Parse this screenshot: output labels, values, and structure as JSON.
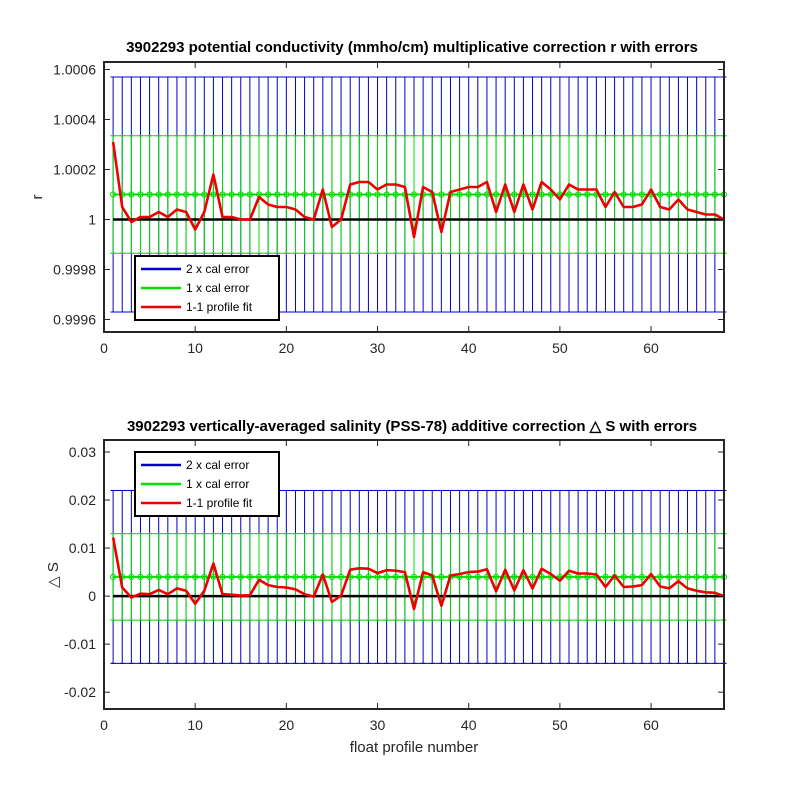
{
  "chart_data": [
    {
      "type": "line",
      "title": "3902293 potential conductivity (mmho/cm) multiplicative correction r with errors",
      "xlabel": "",
      "ylabel": "r",
      "xlim": [
        0,
        68
      ],
      "ylim": [
        0.99955,
        1.00063
      ],
      "xticks": [
        0,
        10,
        20,
        30,
        40,
        50,
        60
      ],
      "xtick_labels": [
        "0",
        "10",
        "20",
        "30",
        "40",
        "50",
        "60"
      ],
      "yticks": [
        0.9996,
        0.9998,
        1,
        1.0002,
        1.0004,
        1.0006
      ],
      "ytick_labels": [
        "0.9996",
        "0.9998",
        "1",
        "1.0002",
        "1.0004",
        "1.0006"
      ],
      "reference_line": 1,
      "legend": {
        "location": "lower-left",
        "entries": [
          "2 x cal error",
          "1 x cal error",
          "1-1 profile fit"
        ]
      },
      "series": [
        {
          "name": "2 x cal error",
          "color": "#0000cc",
          "kind": "errorbar",
          "center": 1.0001,
          "half_width": 0.00047
        },
        {
          "name": "1 x cal error",
          "color": "#00e000",
          "kind": "errorbar",
          "center": 1.0001,
          "half_width": 0.000235
        },
        {
          "name": "1-1 profile fit",
          "color": "#ee0000",
          "kind": "line",
          "x": [
            1,
            2,
            3,
            4,
            5,
            6,
            7,
            8,
            9,
            10,
            11,
            12,
            13,
            14,
            15,
            16,
            17,
            18,
            19,
            20,
            21,
            22,
            23,
            24,
            25,
            26,
            27,
            28,
            29,
            30,
            31,
            32,
            33,
            34,
            35,
            36,
            37,
            38,
            39,
            40,
            41,
            42,
            43,
            44,
            45,
            46,
            47,
            48,
            49,
            50,
            51,
            52,
            53,
            54,
            55,
            56,
            57,
            58,
            59,
            60,
            61,
            62,
            63,
            64,
            65,
            66,
            67,
            68
          ],
          "values": [
            1.00031,
            1.00005,
            0.99999,
            1.00001,
            1.00001,
            1.00003,
            1.00001,
            1.00004,
            1.00003,
            0.99996,
            1.00003,
            1.00018,
            1.00001,
            1.00001,
            1.0,
            1.0,
            1.00009,
            1.00006,
            1.00005,
            1.00005,
            1.00004,
            1.00001,
            1.0,
            1.00012,
            0.99997,
            1.0,
            1.00014,
            1.00015,
            1.00015,
            1.00012,
            1.00014,
            1.00014,
            1.00013,
            0.99993,
            1.00013,
            1.00011,
            0.99995,
            1.00011,
            1.00012,
            1.00013,
            1.00013,
            1.00015,
            1.00003,
            1.00014,
            1.00003,
            1.00014,
            1.00004,
            1.00015,
            1.00012,
            1.00008,
            1.00014,
            1.00012,
            1.00012,
            1.00012,
            1.00005,
            1.00011,
            1.00005,
            1.00005,
            1.00006,
            1.00012,
            1.00005,
            1.00004,
            1.00008,
            1.00004,
            1.00003,
            1.00002,
            1.00002,
            1.0
          ]
        }
      ]
    },
    {
      "type": "line",
      "title": "3902293 vertically-averaged salinity (PSS-78) additive correction △ S with errors",
      "xlabel": "float profile number",
      "ylabel": "△ S",
      "xlim": [
        0,
        68
      ],
      "ylim": [
        -0.0235,
        0.0325
      ],
      "xticks": [
        0,
        10,
        20,
        30,
        40,
        50,
        60
      ],
      "xtick_labels": [
        "0",
        "10",
        "20",
        "30",
        "40",
        "50",
        "60"
      ],
      "yticks": [
        -0.02,
        -0.01,
        0,
        0.01,
        0.02,
        0.03
      ],
      "ytick_labels": [
        "-0.02",
        "-0.01",
        "0",
        "0.01",
        "0.02",
        "0.03"
      ],
      "reference_line": 0,
      "legend": {
        "location": "top-left",
        "entries": [
          "2 x cal error",
          "1 x cal error",
          "1-1 profile fit"
        ]
      },
      "series": [
        {
          "name": "2 x cal error",
          "color": "#0000cc",
          "kind": "errorbar",
          "center": 0.004,
          "half_width": 0.018
        },
        {
          "name": "1 x cal error",
          "color": "#00e000",
          "kind": "errorbar",
          "center": 0.004,
          "half_width": 0.009
        },
        {
          "name": "1-1 profile fit",
          "color": "#ee0000",
          "kind": "line",
          "x": [
            1,
            2,
            3,
            4,
            5,
            6,
            7,
            8,
            9,
            10,
            11,
            12,
            13,
            14,
            15,
            16,
            17,
            18,
            19,
            20,
            21,
            22,
            23,
            24,
            25,
            26,
            27,
            28,
            29,
            30,
            31,
            32,
            33,
            34,
            35,
            36,
            37,
            38,
            39,
            40,
            41,
            42,
            43,
            44,
            45,
            46,
            47,
            48,
            49,
            50,
            51,
            52,
            53,
            54,
            55,
            56,
            57,
            58,
            59,
            60,
            61,
            62,
            63,
            64,
            65,
            66,
            67,
            68
          ],
          "values": [
            0.0122,
            0.0018,
            -0.0003,
            0.0005,
            0.0004,
            0.0013,
            0.0004,
            0.0016,
            0.0011,
            -0.0016,
            0.0011,
            0.0068,
            0.0004,
            0.0003,
            0.0001,
            0.0002,
            0.0034,
            0.0023,
            0.0019,
            0.0018,
            0.0014,
            0.0004,
            -0.0001,
            0.0045,
            -0.0012,
            0.0001,
            0.0055,
            0.0058,
            0.0057,
            0.0048,
            0.0054,
            0.0053,
            0.005,
            -0.0027,
            0.005,
            0.0043,
            -0.002,
            0.0043,
            0.0046,
            0.005,
            0.0051,
            0.0056,
            0.001,
            0.0055,
            0.0012,
            0.0054,
            0.0016,
            0.0057,
            0.0046,
            0.0032,
            0.0053,
            0.0047,
            0.0047,
            0.0045,
            0.0019,
            0.0043,
            0.0019,
            0.002,
            0.0023,
            0.0046,
            0.002,
            0.0016,
            0.0031,
            0.0016,
            0.0011,
            0.0008,
            0.0007,
            0.0
          ]
        }
      ]
    }
  ]
}
